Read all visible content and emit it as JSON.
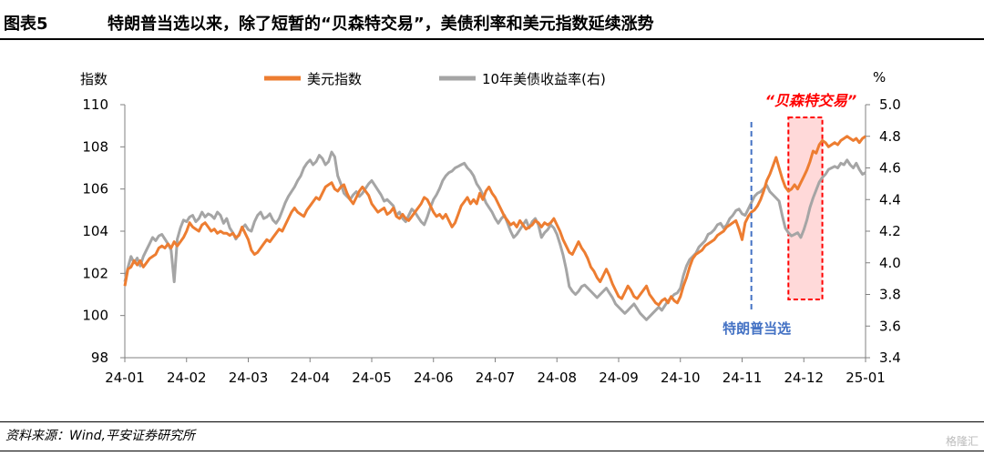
{
  "header": {
    "fig_label": "图表5",
    "title": "特朗普当选以来，除了短暂的“贝森特交易”，美债利率和美元指数延续涨势"
  },
  "footer": {
    "source": "资料来源：Wind,平安证券研究所",
    "watermark": "格隆汇"
  },
  "chart_data": {
    "type": "line",
    "ylabel_left": "指数",
    "ylabel_right": "%",
    "ylim_left": [
      98,
      110
    ],
    "ylim_right": [
      3.4,
      5.0
    ],
    "yticks_left": [
      "98",
      "100",
      "102",
      "104",
      "106",
      "108",
      "110"
    ],
    "yticks_right": [
      "3.4",
      "3.6",
      "3.8",
      "4.0",
      "4.2",
      "4.4",
      "4.6",
      "4.8",
      "5.0"
    ],
    "x_ticks": [
      "24-01",
      "24-02",
      "24-03",
      "24-04",
      "24-05",
      "24-06",
      "24-07",
      "24-08",
      "24-09",
      "24-10",
      "24-11",
      "24-12",
      "25-01"
    ],
    "grid": false,
    "legend_position": "top-center",
    "series": [
      {
        "name": "美元指数",
        "axis": "left",
        "color": "#ED7D31",
        "x": [
          0.0,
          0.05,
          0.1,
          0.15,
          0.2,
          0.25,
          0.3,
          0.35,
          0.4,
          0.45,
          0.5,
          0.55,
          0.6,
          0.65,
          0.7,
          0.75,
          0.8,
          0.85,
          0.9,
          0.95,
          1.0,
          1.05,
          1.1,
          1.15,
          1.2,
          1.25,
          1.3,
          1.35,
          1.4,
          1.45,
          1.5,
          1.55,
          1.6,
          1.65,
          1.7,
          1.75,
          1.8,
          1.85,
          1.9,
          1.95,
          2.0,
          2.05,
          2.1,
          2.15,
          2.2,
          2.25,
          2.3,
          2.35,
          2.4,
          2.45,
          2.5,
          2.55,
          2.6,
          2.65,
          2.7,
          2.75,
          2.8,
          2.85,
          2.9,
          2.95,
          3.0,
          3.05,
          3.1,
          3.15,
          3.2,
          3.25,
          3.3,
          3.35,
          3.4,
          3.45,
          3.5,
          3.55,
          3.6,
          3.65,
          3.7,
          3.75,
          3.8,
          3.85,
          3.9,
          3.95,
          4.0,
          4.05,
          4.1,
          4.15,
          4.2,
          4.25,
          4.3,
          4.35,
          4.4,
          4.45,
          4.5,
          4.55,
          4.6,
          4.65,
          4.7,
          4.75,
          4.8,
          4.85,
          4.9,
          4.95,
          5.0,
          5.05,
          5.1,
          5.15,
          5.2,
          5.25,
          5.3,
          5.35,
          5.4,
          5.45,
          5.5,
          5.55,
          5.6,
          5.65,
          5.7,
          5.75,
          5.8,
          5.85,
          5.9,
          5.95,
          6.0,
          6.05,
          6.1,
          6.15,
          6.2,
          6.25,
          6.3,
          6.35,
          6.4,
          6.45,
          6.5,
          6.55,
          6.6,
          6.65,
          6.7,
          6.75,
          6.8,
          6.85,
          6.9,
          6.95,
          7.0,
          7.05,
          7.1,
          7.15,
          7.2,
          7.25,
          7.3,
          7.35,
          7.4,
          7.45,
          7.5,
          7.55,
          7.6,
          7.65,
          7.7,
          7.75,
          7.8,
          7.85,
          7.9,
          7.95,
          8.0,
          8.05,
          8.1,
          8.15,
          8.2,
          8.25,
          8.3,
          8.35,
          8.4,
          8.45,
          8.5,
          8.55,
          8.6,
          8.65,
          8.7,
          8.75,
          8.8,
          8.85,
          8.9,
          8.95,
          9.0,
          9.05,
          9.1,
          9.15,
          9.2,
          9.25,
          9.3,
          9.35,
          9.4,
          9.45,
          9.5,
          9.55,
          9.6,
          9.65,
          9.7,
          9.75,
          9.8,
          9.85,
          9.9,
          9.95,
          10.0,
          10.05,
          10.1,
          10.15,
          10.2,
          10.25,
          10.3,
          10.35,
          10.4,
          10.45,
          10.5,
          10.55,
          10.6,
          10.65,
          10.7,
          10.75,
          10.8,
          10.85,
          10.9,
          10.95,
          11.0,
          11.05,
          11.1,
          11.15,
          11.2,
          11.25,
          11.3,
          11.35,
          11.4,
          11.45,
          11.5,
          11.55,
          11.6,
          11.65,
          11.7,
          11.75,
          11.8,
          11.85,
          11.9,
          11.95,
          12.0
        ],
        "values": [
          101.4,
          102.2,
          102.3,
          102.6,
          102.4,
          102.6,
          102.3,
          102.5,
          102.7,
          102.8,
          102.9,
          103.2,
          103.3,
          103.2,
          103.4,
          103.2,
          103.5,
          103.3,
          103.5,
          103.7,
          104.0,
          104.4,
          104.2,
          104.1,
          104.0,
          104.3,
          104.4,
          104.2,
          104.0,
          104.1,
          103.9,
          104.0,
          103.9,
          103.9,
          103.8,
          103.9,
          103.7,
          103.8,
          104.2,
          103.9,
          103.6,
          103.1,
          102.9,
          103.0,
          103.2,
          103.4,
          103.6,
          103.5,
          103.7,
          103.9,
          104.1,
          104.0,
          104.3,
          104.6,
          104.9,
          105.1,
          104.9,
          104.8,
          104.7,
          105.0,
          105.2,
          105.4,
          105.6,
          105.5,
          105.8,
          106.1,
          106.2,
          106.3,
          106.0,
          105.9,
          106.1,
          106.2,
          105.8,
          105.5,
          105.3,
          105.6,
          105.9,
          106.1,
          105.9,
          105.7,
          105.3,
          105.1,
          104.9,
          105.0,
          105.1,
          104.8,
          104.9,
          105.1,
          104.7,
          104.6,
          104.8,
          104.6,
          104.5,
          104.7,
          104.9,
          105.1,
          105.3,
          105.6,
          105.5,
          105.2,
          104.9,
          104.7,
          104.8,
          104.6,
          104.8,
          104.5,
          104.2,
          104.4,
          104.8,
          105.2,
          105.4,
          105.6,
          105.3,
          105.5,
          105.3,
          105.8,
          105.5,
          105.9,
          106.1,
          105.8,
          105.6,
          105.3,
          105.0,
          104.7,
          104.5,
          104.3,
          104.4,
          104.2,
          104.5,
          104.3,
          104.1,
          104.2,
          104.3,
          104.5,
          104.4,
          104.2,
          104.4,
          104.3,
          104.4,
          104.6,
          104.3,
          104.0,
          103.6,
          103.3,
          103.0,
          102.9,
          103.2,
          103.5,
          103.2,
          103.0,
          102.7,
          102.3,
          102.1,
          101.8,
          101.6,
          101.9,
          102.2,
          101.9,
          101.5,
          101.2,
          100.9,
          100.8,
          101.1,
          101.4,
          101.2,
          100.9,
          100.8,
          101.0,
          101.2,
          101.4,
          101.0,
          100.8,
          100.6,
          100.5,
          100.7,
          100.8,
          100.6,
          100.9,
          100.7,
          100.6,
          100.9,
          101.4,
          101.8,
          102.3,
          102.7,
          102.9,
          103.0,
          103.1,
          103.3,
          103.4,
          103.5,
          103.6,
          103.8,
          103.9,
          104.0,
          104.2,
          104.3,
          104.4,
          104.5,
          104.1,
          103.6,
          104.4,
          104.7,
          104.9,
          105.0,
          105.2,
          105.5,
          105.9,
          106.4,
          106.7,
          107.1,
          107.5,
          107.0,
          106.5,
          106.1,
          105.9,
          106.0,
          106.2,
          106.0,
          106.3,
          106.6,
          106.9,
          107.3,
          107.8,
          107.7,
          108.1,
          108.3,
          108.2,
          108.0,
          108.1,
          108.2,
          108.1,
          108.3,
          108.4,
          108.5,
          108.4,
          108.3,
          108.4,
          108.2,
          108.4,
          108.5
        ]
      },
      {
        "name": "10年美债收益率(右)",
        "axis": "right",
        "color": "#A5A5A5",
        "x": [
          0.0,
          0.05,
          0.1,
          0.15,
          0.2,
          0.25,
          0.3,
          0.35,
          0.4,
          0.45,
          0.5,
          0.55,
          0.6,
          0.65,
          0.7,
          0.75,
          0.8,
          0.85,
          0.9,
          0.95,
          1.0,
          1.05,
          1.1,
          1.15,
          1.2,
          1.25,
          1.3,
          1.35,
          1.4,
          1.45,
          1.5,
          1.55,
          1.6,
          1.65,
          1.7,
          1.75,
          1.8,
          1.85,
          1.9,
          1.95,
          2.0,
          2.05,
          2.1,
          2.15,
          2.2,
          2.25,
          2.3,
          2.35,
          2.4,
          2.45,
          2.5,
          2.55,
          2.6,
          2.65,
          2.7,
          2.75,
          2.8,
          2.85,
          2.9,
          2.95,
          3.0,
          3.05,
          3.1,
          3.15,
          3.2,
          3.25,
          3.3,
          3.35,
          3.4,
          3.45,
          3.5,
          3.55,
          3.6,
          3.65,
          3.7,
          3.75,
          3.8,
          3.85,
          3.9,
          3.95,
          4.0,
          4.05,
          4.1,
          4.15,
          4.2,
          4.25,
          4.3,
          4.35,
          4.4,
          4.45,
          4.5,
          4.55,
          4.6,
          4.65,
          4.7,
          4.75,
          4.8,
          4.85,
          4.9,
          4.95,
          5.0,
          5.05,
          5.1,
          5.15,
          5.2,
          5.25,
          5.3,
          5.35,
          5.4,
          5.45,
          5.5,
          5.55,
          5.6,
          5.65,
          5.7,
          5.75,
          5.8,
          5.85,
          5.9,
          5.95,
          6.0,
          6.05,
          6.1,
          6.15,
          6.2,
          6.25,
          6.3,
          6.35,
          6.4,
          6.45,
          6.5,
          6.55,
          6.6,
          6.65,
          6.7,
          6.75,
          6.8,
          6.85,
          6.9,
          6.95,
          7.0,
          7.05,
          7.1,
          7.15,
          7.2,
          7.25,
          7.3,
          7.35,
          7.4,
          7.45,
          7.5,
          7.55,
          7.6,
          7.65,
          7.7,
          7.75,
          7.8,
          7.85,
          7.9,
          7.95,
          8.0,
          8.05,
          8.1,
          8.15,
          8.2,
          8.25,
          8.3,
          8.35,
          8.4,
          8.45,
          8.5,
          8.55,
          8.6,
          8.65,
          8.7,
          8.75,
          8.8,
          8.85,
          8.9,
          8.95,
          9.0,
          9.05,
          9.1,
          9.15,
          9.2,
          9.25,
          9.3,
          9.35,
          9.4,
          9.45,
          9.5,
          9.55,
          9.6,
          9.65,
          9.7,
          9.75,
          9.8,
          9.85,
          9.9,
          9.95,
          10.0,
          10.05,
          10.1,
          10.15,
          10.2,
          10.25,
          10.3,
          10.35,
          10.4,
          10.45,
          10.5,
          10.55,
          10.6,
          10.65,
          10.7,
          10.75,
          10.8,
          10.85,
          10.9,
          10.95,
          11.0,
          11.05,
          11.1,
          11.15,
          11.2,
          11.25,
          11.3,
          11.35,
          11.4,
          11.45,
          11.5,
          11.55,
          11.6,
          11.65,
          11.7,
          11.75,
          11.8,
          11.85,
          11.9,
          11.95,
          12.0
        ],
        "values": [
          3.88,
          3.97,
          4.04,
          4.0,
          4.03,
          3.98,
          4.04,
          4.08,
          4.12,
          4.16,
          4.14,
          4.17,
          4.18,
          4.15,
          4.12,
          4.08,
          3.88,
          4.15,
          4.22,
          4.27,
          4.26,
          4.29,
          4.3,
          4.26,
          4.28,
          4.32,
          4.29,
          4.31,
          4.3,
          4.28,
          4.32,
          4.3,
          4.25,
          4.28,
          4.22,
          4.19,
          4.15,
          4.18,
          4.22,
          4.24,
          4.21,
          4.2,
          4.26,
          4.3,
          4.32,
          4.28,
          4.29,
          4.31,
          4.27,
          4.25,
          4.28,
          4.33,
          4.38,
          4.42,
          4.45,
          4.48,
          4.52,
          4.55,
          4.6,
          4.63,
          4.65,
          4.62,
          4.64,
          4.68,
          4.66,
          4.62,
          4.64,
          4.7,
          4.67,
          4.55,
          4.5,
          4.44,
          4.42,
          4.4,
          4.43,
          4.45,
          4.42,
          4.44,
          4.47,
          4.5,
          4.52,
          4.49,
          4.46,
          4.43,
          4.39,
          4.4,
          4.38,
          4.36,
          4.3,
          4.32,
          4.28,
          4.26,
          4.3,
          4.34,
          4.32,
          4.29,
          4.26,
          4.24,
          4.29,
          4.35,
          4.4,
          4.43,
          4.47,
          4.52,
          4.55,
          4.57,
          4.58,
          4.6,
          4.61,
          4.62,
          4.63,
          4.6,
          4.58,
          4.55,
          4.5,
          4.47,
          4.43,
          4.38,
          4.35,
          4.32,
          4.28,
          4.25,
          4.28,
          4.3,
          4.25,
          4.2,
          4.16,
          4.18,
          4.21,
          4.24,
          4.27,
          4.22,
          4.26,
          4.28,
          4.24,
          4.16,
          4.19,
          4.21,
          4.24,
          4.22,
          4.18,
          4.12,
          4.05,
          3.96,
          3.85,
          3.82,
          3.8,
          3.82,
          3.85,
          3.86,
          3.84,
          3.82,
          3.8,
          3.78,
          3.8,
          3.82,
          3.84,
          3.81,
          3.78,
          3.74,
          3.72,
          3.7,
          3.68,
          3.7,
          3.72,
          3.74,
          3.71,
          3.68,
          3.66,
          3.64,
          3.66,
          3.68,
          3.7,
          3.72,
          3.7,
          3.73,
          3.76,
          3.78,
          3.8,
          3.81,
          3.84,
          3.92,
          3.98,
          4.02,
          4.04,
          4.06,
          4.1,
          4.12,
          4.14,
          4.18,
          4.19,
          4.21,
          4.24,
          4.25,
          4.22,
          4.24,
          4.28,
          4.3,
          4.33,
          4.34,
          4.31,
          4.3,
          4.34,
          4.38,
          4.42,
          4.44,
          4.45,
          4.47,
          4.49,
          4.45,
          4.43,
          4.41,
          4.39,
          4.3,
          4.22,
          4.19,
          4.17,
          4.18,
          4.19,
          4.16,
          4.21,
          4.27,
          4.35,
          4.41,
          4.46,
          4.51,
          4.54,
          4.56,
          4.59,
          4.6,
          4.61,
          4.6,
          4.63,
          4.62,
          4.65,
          4.62,
          4.6,
          4.63,
          4.59,
          4.56,
          4.57
        ]
      }
    ],
    "annotations": {
      "election": {
        "label": "特朗普当选",
        "x": 10.15,
        "color": "#4472C4"
      },
      "bessent": {
        "label": "“贝森特交易”",
        "x_start": 10.75,
        "x_end": 11.3,
        "color": "#FF0000"
      }
    }
  }
}
